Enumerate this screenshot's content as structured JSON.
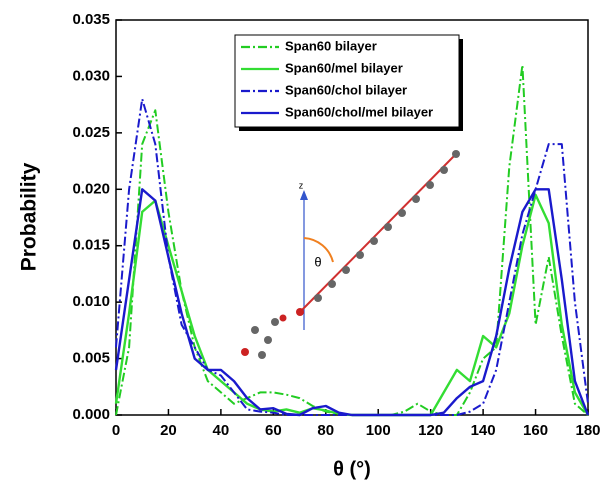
{
  "chart_data": {
    "type": "line",
    "xlabel": "θ (°)",
    "ylabel": "Probability",
    "annotations": [
      "z",
      "θ"
    ],
    "x": [
      0,
      5,
      10,
      15,
      20,
      25,
      30,
      35,
      40,
      45,
      50,
      55,
      60,
      65,
      70,
      75,
      80,
      85,
      90,
      95,
      100,
      105,
      110,
      115,
      120,
      125,
      130,
      135,
      140,
      145,
      150,
      155,
      160,
      165,
      170,
      175,
      180
    ],
    "series": [
      {
        "name": "Span60 bilayer",
        "color": "#22cc22",
        "style": "dashdot",
        "values": [
          0,
          0.006,
          0.024,
          0.027,
          0.018,
          0.011,
          0.006,
          0.003,
          0.002,
          0.001,
          0.0015,
          0.002,
          0.002,
          0.0018,
          0.0015,
          0.0008,
          0.0003,
          0.0001,
          0,
          0,
          0,
          0,
          0.0003,
          0.001,
          0.0003,
          0,
          0,
          0.002,
          0.005,
          0.006,
          0.022,
          0.031,
          0.008,
          0.014,
          0.007,
          0.001,
          0
        ]
      },
      {
        "name": "Span60/mel bilayer",
        "color": "#33dd33",
        "style": "solid",
        "values": [
          0.001,
          0.009,
          0.018,
          0.019,
          0.015,
          0.011,
          0.007,
          0.004,
          0.003,
          0.002,
          0.001,
          0.0005,
          0.0003,
          0.0005,
          0.0002,
          0.0006,
          0.0004,
          0.0001,
          0,
          0,
          0,
          0,
          0,
          0,
          0,
          0.002,
          0.004,
          0.003,
          0.007,
          0.006,
          0.009,
          0.015,
          0.0195,
          0.017,
          0.008,
          0.002,
          0
        ]
      },
      {
        "name": "Span60/chol bilayer",
        "color": "#1a1acc",
        "style": "dashdot",
        "values": [
          0.006,
          0.02,
          0.028,
          0.024,
          0.014,
          0.008,
          0.006,
          0.004,
          0.0035,
          0.002,
          0.0005,
          0.0003,
          0.0002,
          0,
          0,
          0,
          0,
          0,
          0,
          0,
          0,
          0,
          0,
          0,
          0,
          0,
          0,
          0.0003,
          0.001,
          0.004,
          0.01,
          0.016,
          0.02,
          0.024,
          0.024,
          0.01,
          0.001
        ]
      },
      {
        "name": "Span60/chol/mel bilayer",
        "color": "#1a1acc",
        "style": "solid",
        "values": [
          0.004,
          0.012,
          0.02,
          0.019,
          0.014,
          0.009,
          0.005,
          0.004,
          0.004,
          0.003,
          0.0015,
          0.0005,
          0.0006,
          0.0001,
          0,
          0.0006,
          0.0008,
          0.0002,
          0,
          0,
          0,
          0,
          0,
          0,
          0,
          0.0002,
          0.0015,
          0.0025,
          0.003,
          0.007,
          0.013,
          0.018,
          0.02,
          0.02,
          0.012,
          0.003,
          0
        ]
      }
    ],
    "xlim": [
      0,
      180
    ],
    "xticks": [
      0,
      20,
      40,
      60,
      80,
      100,
      120,
      140,
      160,
      180
    ],
    "ylim": [
      0,
      0.035
    ],
    "yticks": [
      {
        "value": 0,
        "label": "0.000"
      },
      {
        "value": 0.005,
        "label": "0.005"
      },
      {
        "value": 0.01,
        "label": "0.010"
      },
      {
        "value": 0.015,
        "label": "0.015"
      },
      {
        "value": 0.02,
        "label": "0.020"
      },
      {
        "value": 0.025,
        "label": "0.025"
      },
      {
        "value": 0.03,
        "label": "0.030"
      },
      {
        "value": 0.035,
        "label": "0.035"
      }
    ],
    "legend": "top-center"
  }
}
